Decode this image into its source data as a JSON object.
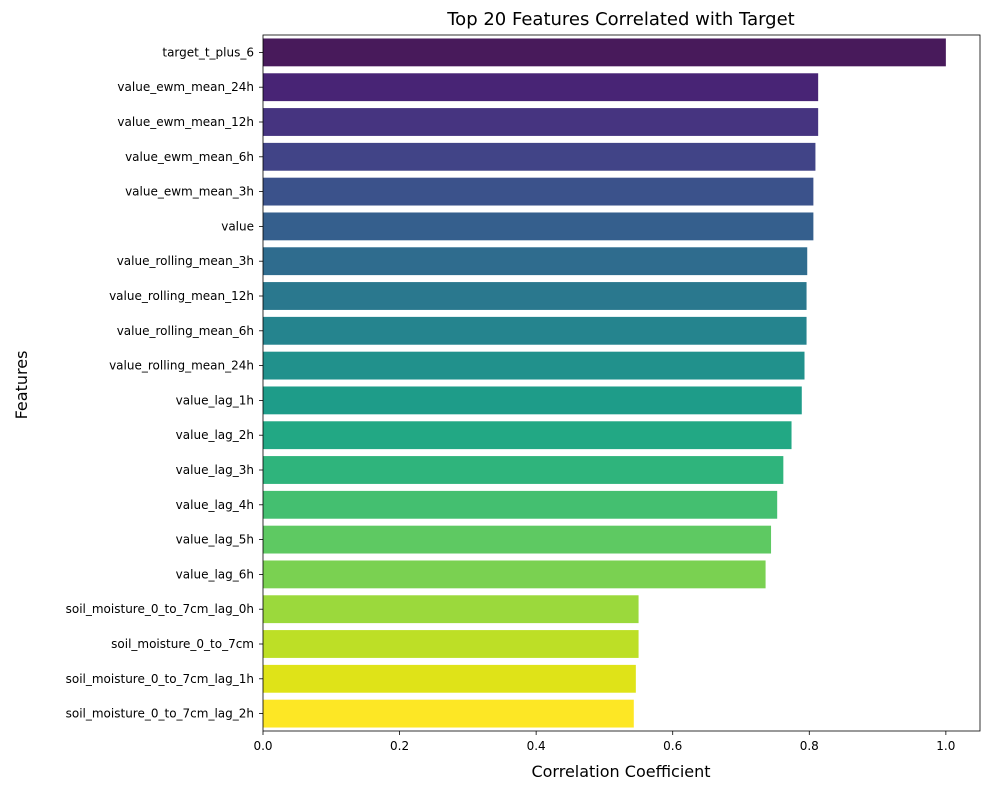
{
  "chart_data": {
    "type": "bar",
    "orientation": "horizontal",
    "title": "Top 20 Features Correlated with Target",
    "xlabel": "Correlation Coefficient",
    "ylabel": "Features",
    "xlim": [
      0,
      1.05
    ],
    "xticks": [
      0.0,
      0.2,
      0.4,
      0.6,
      0.8,
      1.0
    ],
    "xtick_labels": [
      "0.0",
      "0.2",
      "0.4",
      "0.6",
      "0.8",
      "1.0"
    ],
    "grid": false,
    "legend": "none",
    "palette": "viridis",
    "colors": [
      "#481a5b",
      "#482475",
      "#463480",
      "#414487",
      "#3b528b",
      "#355f8d",
      "#2f6c8e",
      "#2a788e",
      "#25848e",
      "#21918c",
      "#1e9c89",
      "#22a884",
      "#2fb47c",
      "#44bf70",
      "#5ec962",
      "#7ad151",
      "#9bd93c",
      "#bddf26",
      "#dfe318",
      "#fde725"
    ],
    "categories": [
      "target_t_plus_6",
      "value_ewm_mean_24h",
      "value_ewm_mean_12h",
      "value_ewm_mean_6h",
      "value_ewm_mean_3h",
      "value",
      "value_rolling_mean_3h",
      "value_rolling_mean_12h",
      "value_rolling_mean_6h",
      "value_rolling_mean_24h",
      "value_lag_1h",
      "value_lag_2h",
      "value_lag_3h",
      "value_lag_4h",
      "value_lag_5h",
      "value_lag_6h",
      "soil_moisture_0_to_7cm_lag_0h",
      "soil_moisture_0_to_7cm",
      "soil_moisture_0_to_7cm_lag_1h",
      "soil_moisture_0_to_7cm_lag_2h"
    ],
    "values": [
      1.0,
      0.813,
      0.813,
      0.809,
      0.806,
      0.806,
      0.797,
      0.796,
      0.796,
      0.793,
      0.789,
      0.774,
      0.762,
      0.753,
      0.744,
      0.736,
      0.55,
      0.55,
      0.546,
      0.543
    ]
  }
}
